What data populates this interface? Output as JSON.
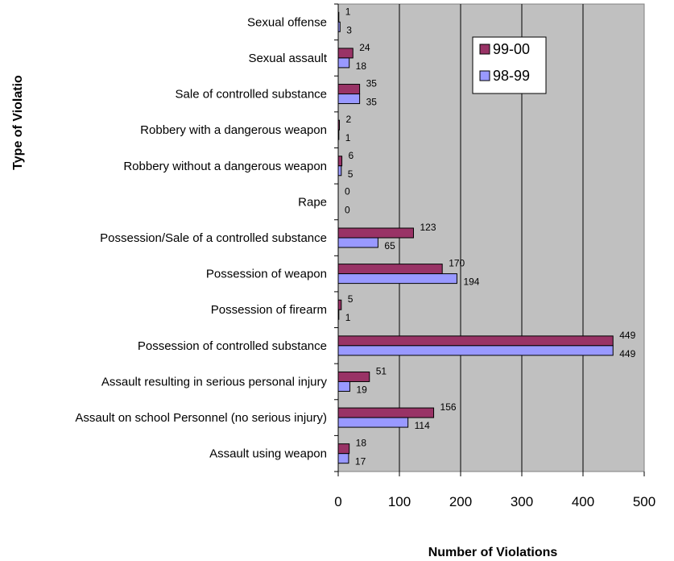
{
  "chart_data": {
    "type": "bar",
    "orientation": "horizontal",
    "title": "",
    "xlabel": "Number of Violations",
    "ylabel": "Type of Violatio",
    "xlim": [
      0,
      500
    ],
    "xticks": [
      "0",
      "100",
      "200",
      "300",
      "400",
      "500"
    ],
    "grid": true,
    "legend_position": "top-right",
    "categories": [
      "Sexual offense",
      "Sexual assault",
      "Sale of controlled substance",
      "Robbery with a dangerous weapon",
      "Robbery without a dangerous weapon",
      "Rape",
      "Possession/Sale of a controlled substance",
      "Possession of weapon",
      "Possession of firearm",
      "Possession of controlled substance",
      "Assault resulting in serious personal injury",
      "Assault on school Personnel (no serious injury)",
      "Assault using weapon"
    ],
    "series": [
      {
        "name": "99-00",
        "color": "#993366",
        "values": [
          1,
          24,
          35,
          2,
          6,
          0,
          123,
          170,
          5,
          449,
          51,
          156,
          18
        ]
      },
      {
        "name": "98-99",
        "color": "#9999ff",
        "values": [
          3,
          18,
          35,
          1,
          5,
          0,
          65,
          194,
          1,
          449,
          19,
          114,
          17
        ]
      }
    ],
    "plot_background": "#c0c0c0"
  }
}
